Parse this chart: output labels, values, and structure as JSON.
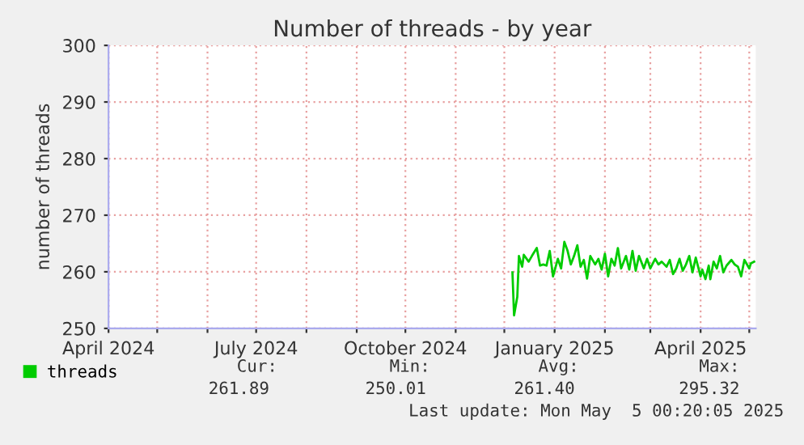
{
  "chart_data": {
    "type": "line",
    "title": "Number of threads - by year",
    "ylabel": "number of threads",
    "xlim": [
      "2024-04-01",
      "2025-05-05"
    ],
    "xticks": [
      {
        "value": "2024-04-01",
        "label": "April 2024"
      },
      {
        "value": "2024-05-01",
        "label": null
      },
      {
        "value": "2024-06-01",
        "label": null
      },
      {
        "value": "2024-07-01",
        "label": "July 2024"
      },
      {
        "value": "2024-08-01",
        "label": null
      },
      {
        "value": "2024-09-01",
        "label": null
      },
      {
        "value": "2024-10-01",
        "label": "October 2024"
      },
      {
        "value": "2024-11-01",
        "label": null
      },
      {
        "value": "2024-12-01",
        "label": null
      },
      {
        "value": "2025-01-01",
        "label": "January 2025"
      },
      {
        "value": "2025-02-01",
        "label": null
      },
      {
        "value": "2025-03-01",
        "label": null
      },
      {
        "value": "2025-04-01",
        "label": "April 2025"
      },
      {
        "value": "2025-05-01",
        "label": null
      }
    ],
    "ylim": [
      250,
      300
    ],
    "yticks": [
      250,
      260,
      270,
      280,
      290,
      300
    ],
    "grid": true,
    "legend": "bottom left",
    "x": [
      "2024-12-06",
      "2024-12-07",
      "2024-12-09",
      "2024-12-10",
      "2024-12-12",
      "2024-12-13",
      "2024-12-16",
      "2024-12-18",
      "2024-12-21",
      "2024-12-23",
      "2024-12-25",
      "2024-12-27",
      "2024-12-29",
      "2024-12-31",
      "2025-01-03",
      "2025-01-05",
      "2025-01-07",
      "2025-01-09",
      "2025-01-11",
      "2025-01-13",
      "2025-01-15",
      "2025-01-17",
      "2025-01-19",
      "2025-01-21",
      "2025-01-23",
      "2025-01-26",
      "2025-01-28",
      "2025-01-30",
      "2025-02-01",
      "2025-02-03",
      "2025-02-05",
      "2025-02-07",
      "2025-02-09",
      "2025-02-11",
      "2025-02-14",
      "2025-02-16",
      "2025-02-18",
      "2025-02-20",
      "2025-02-22",
      "2025-02-25",
      "2025-02-27",
      "2025-03-01",
      "2025-03-04",
      "2025-03-06",
      "2025-03-08",
      "2025-03-11",
      "2025-03-13",
      "2025-03-15",
      "2025-03-17",
      "2025-03-19",
      "2025-03-21",
      "2025-03-23",
      "2025-03-25",
      "2025-03-27",
      "2025-03-29",
      "2025-04-01",
      "2025-04-02",
      "2025-04-04",
      "2025-04-06",
      "2025-04-07",
      "2025-04-09",
      "2025-04-11",
      "2025-04-13",
      "2025-04-15",
      "2025-04-17",
      "2025-04-20",
      "2025-04-22",
      "2025-04-24",
      "2025-04-26",
      "2025-04-28",
      "2025-05-01",
      "2025-05-02",
      "2025-05-04"
    ],
    "series": [
      {
        "name": "threads",
        "color": "#00cc00",
        "values": [
          259.9,
          252.3,
          255.6,
          262.8,
          260.9,
          263.0,
          261.8,
          262.8,
          264.2,
          261.1,
          261.3,
          261.1,
          263.7,
          259.2,
          262.3,
          260.6,
          265.3,
          263.7,
          261.3,
          262.8,
          264.7,
          260.9,
          262.1,
          258.8,
          262.8,
          261.3,
          262.3,
          260.4,
          263.2,
          259.2,
          262.3,
          261.1,
          264.2,
          260.6,
          262.8,
          260.4,
          263.7,
          260.2,
          262.8,
          260.6,
          262.3,
          260.6,
          262.3,
          261.3,
          261.8,
          260.9,
          262.1,
          259.6,
          260.6,
          262.3,
          260.2,
          261.3,
          262.8,
          259.9,
          262.5,
          259.2,
          260.4,
          258.7,
          261.1,
          258.7,
          261.8,
          260.6,
          262.8,
          259.9,
          261.1,
          262.1,
          261.3,
          260.9,
          259.2,
          262.1,
          260.6,
          261.5,
          261.8
        ]
      }
    ],
    "annotations": [
      "Cur:",
      "Min:",
      "Avg:",
      "Max:",
      "261.89",
      "250.01",
      "261.40",
      "295.32",
      "Last update: Mon May  5 00:20:05 2025"
    ]
  }
}
